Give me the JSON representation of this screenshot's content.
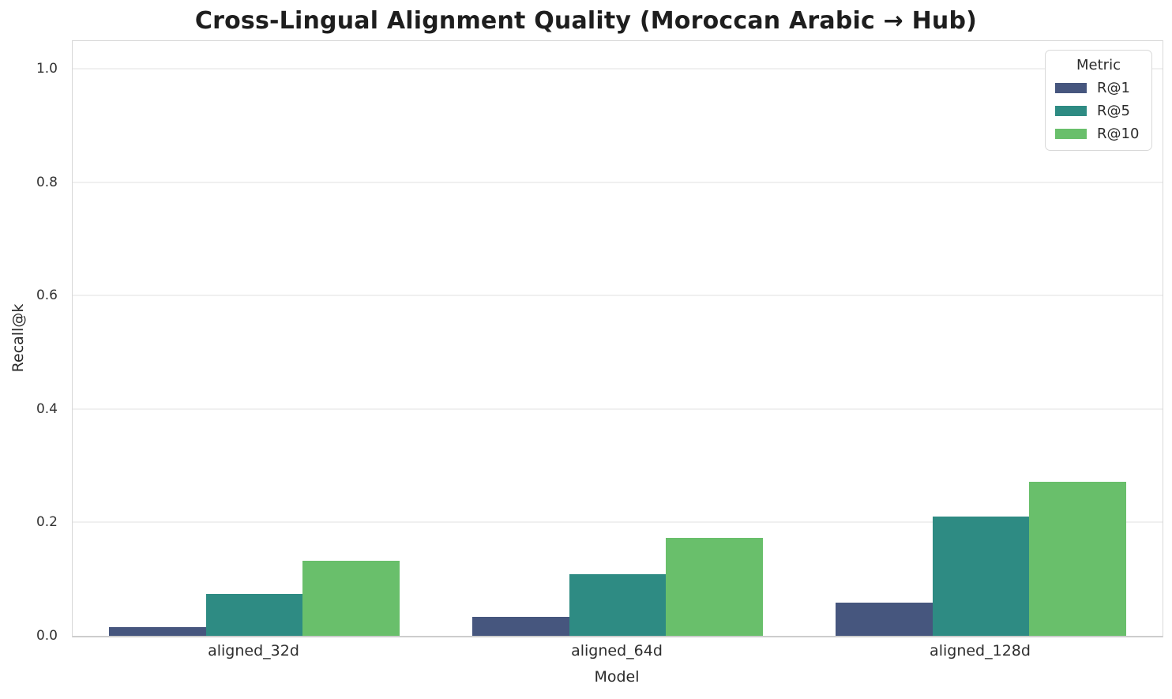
{
  "title": "Cross-Lingual Alignment Quality (Moroccan Arabic → Hub)",
  "chart_data": {
    "type": "bar",
    "title": "Cross-Lingual Alignment Quality (Moroccan Arabic → Hub)",
    "categories": [
      "aligned_32d",
      "aligned_64d",
      "aligned_128d"
    ],
    "series": [
      {
        "name": "R@1",
        "color": "#46567e",
        "values": [
          0.016,
          0.034,
          0.058
        ]
      },
      {
        "name": "R@5",
        "color": "#2e8b83",
        "values": [
          0.074,
          0.108,
          0.21
        ]
      },
      {
        "name": "R@10",
        "color": "#69bf6b",
        "values": [
          0.132,
          0.173,
          0.272
        ]
      }
    ],
    "xlabel": "Model",
    "ylabel": "Recall@k",
    "ylim": [
      0,
      1.049
    ],
    "yticks": [
      0.0,
      0.2,
      0.4,
      0.6,
      0.8,
      1.0
    ],
    "ytick_labels": [
      "0.0",
      "0.2",
      "0.4",
      "0.6",
      "0.8",
      "1.0"
    ],
    "grid": "horizontal",
    "legend": {
      "title": "Metric",
      "position": "upper-right"
    },
    "colors": {
      "grid": "#f0f0f0",
      "spine": "#d8d8d8",
      "text": "#262626"
    }
  }
}
